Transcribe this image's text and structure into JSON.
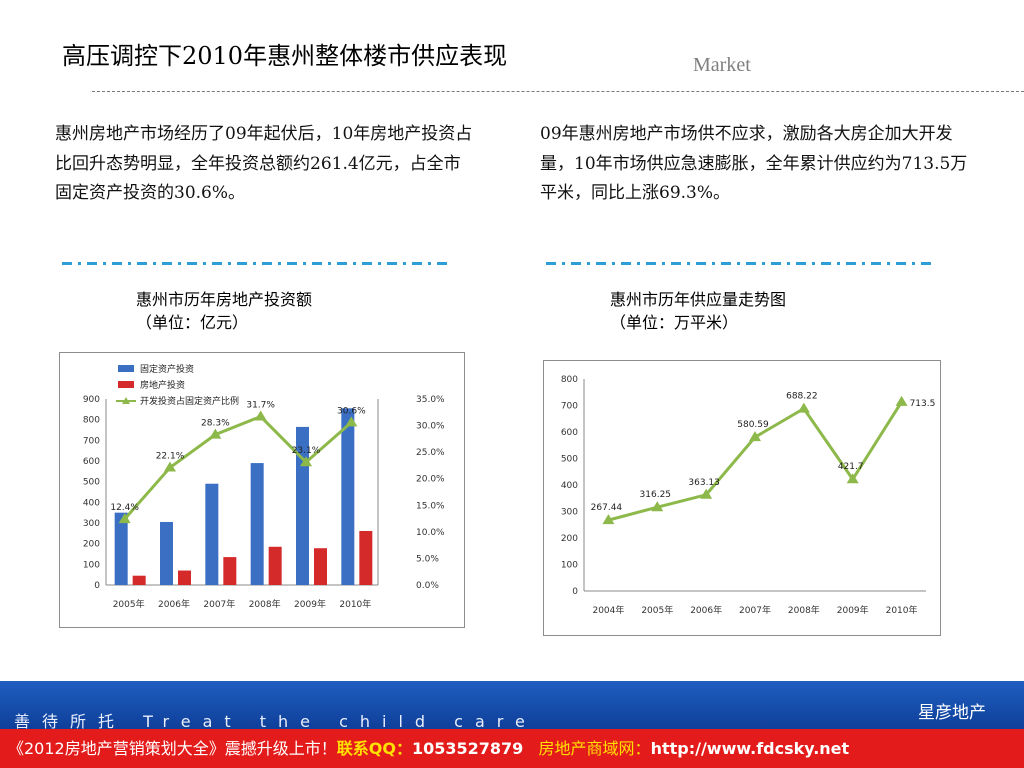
{
  "slide": {
    "title": "高压调控下2010年惠州整体楼市供应表现",
    "section_tag": "Market"
  },
  "left_panel": {
    "paragraph": "惠州房地产市场经历了09年起伏后，10年房地产投资占比回升态势明显，全年投资总额约261.4亿元，占全市固定资产投资的30.6%。",
    "caption_line1": "惠州市历年房地产投资额",
    "caption_line2": "（单位：亿元）"
  },
  "right_panel": {
    "paragraph": "09年惠州房地产市场供不应求，激励各大房企加大开发量，10年市场供应急速膨胀，全年累计供应约为713.5万平米，同比上涨69.3%。",
    "caption_line1": "惠州市历年供应量走势图",
    "caption_line2": "（单位：万平米）"
  },
  "footer": {
    "slogan": "善待所托 Treat the child care",
    "brand": "星彦地产",
    "promo": {
      "part1": "《2012房地产营销策划大全》震撼升级上市！",
      "part2": "联系QQ：",
      "part3": "1053527879",
      "part4": "房地产商域网：",
      "part5": "http://www.fdcsky.net"
    }
  },
  "colors": {
    "bar_fixed": "#3a6fc4",
    "bar_realestate": "#d42a2a",
    "line_ratio": "#8db84a",
    "line_supply": "#8db84a",
    "accent_blue": "#2e9ed6",
    "footer_red": "#e31b1b"
  },
  "chart_data": [
    {
      "type": "bar",
      "categories": [
        "2005年",
        "2006年",
        "2007年",
        "2008年",
        "2009年",
        "2010年"
      ],
      "series": [
        {
          "name": "固定资产投资",
          "kind": "bar",
          "axis": "left",
          "values": [
            350,
            305,
            490,
            590,
            765,
            855
          ]
        },
        {
          "name": "房地产投资",
          "kind": "bar",
          "axis": "left",
          "values": [
            45,
            70,
            135,
            185,
            178,
            261.4
          ]
        },
        {
          "name": "开发投资占固定资产比例",
          "kind": "line",
          "axis": "right",
          "values": [
            12.4,
            22.1,
            28.3,
            31.7,
            23.1,
            30.6
          ],
          "labels": [
            "12.4%",
            "22.1%",
            "28.3%",
            "31.7%",
            "23.1%",
            "30.6%"
          ]
        }
      ],
      "y_left": {
        "min": 0,
        "max": 900,
        "ticks": [
          "0",
          "100",
          "200",
          "300",
          "400",
          "500",
          "600",
          "700",
          "800",
          "900"
        ]
      },
      "y_right": {
        "min": 0,
        "max": 35,
        "ticks": [
          "0.0%",
          "5.0%",
          "10.0%",
          "15.0%",
          "20.0%",
          "25.0%",
          "30.0%",
          "35.0%"
        ]
      },
      "legend": "top-left",
      "grid": false
    },
    {
      "type": "line",
      "categories": [
        "2004年",
        "2005年",
        "2006年",
        "2007年",
        "2008年",
        "2009年",
        "2010年"
      ],
      "series": [
        {
          "values": [
            267.44,
            316.25,
            363.13,
            580.59,
            688.22,
            421.7,
            713.5
          ],
          "labels": [
            "267.44",
            "316.25",
            "363.13",
            "580.59",
            "688.22",
            "421.7",
            "713.5"
          ]
        }
      ],
      "y": {
        "min": 0,
        "max": 800,
        "ticks": [
          "0",
          "100",
          "200",
          "300",
          "400",
          "500",
          "600",
          "700",
          "800"
        ]
      },
      "grid": false
    }
  ]
}
